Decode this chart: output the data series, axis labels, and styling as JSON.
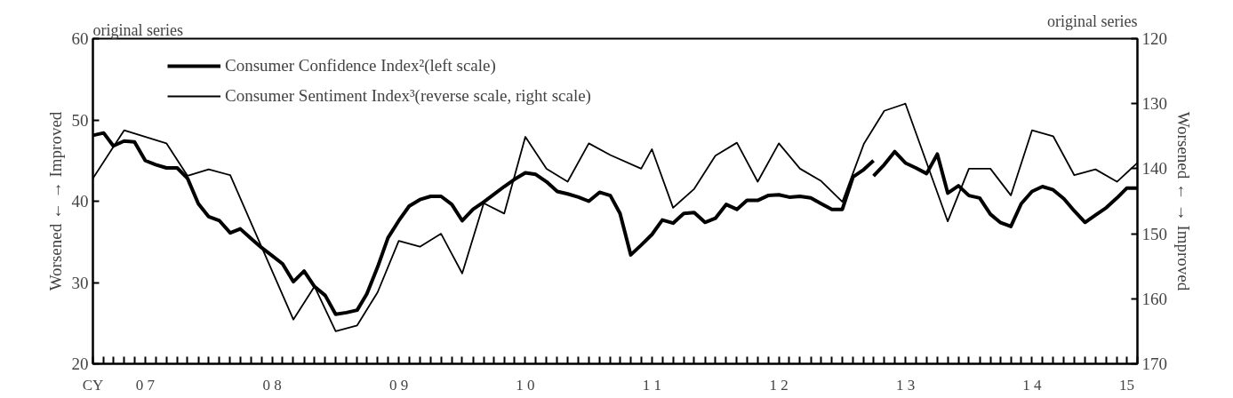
{
  "chart_data": {
    "type": "line",
    "ylabel": "Worsened ← → Improved",
    "y2label": "Worsened ← → Improved",
    "xlabel": "CY",
    "annotations": [
      "original series",
      "original series"
    ],
    "xlim": [
      "2007-01",
      "2015-04"
    ],
    "xticks": [
      {
        "value": "2007-06",
        "label": "0 7"
      },
      {
        "value": "2008-06",
        "label": "0 8"
      },
      {
        "value": "2009-06",
        "label": "0 9"
      },
      {
        "value": "2010-06",
        "label": "1 0"
      },
      {
        "value": "2011-06",
        "label": "1 1"
      },
      {
        "value": "2012-06",
        "label": "1 2"
      },
      {
        "value": "2013-06",
        "label": "1 3"
      },
      {
        "value": "2014-06",
        "label": "1 4"
      },
      {
        "value": "2015-03",
        "label": "15"
      }
    ],
    "ylim": [
      20,
      60
    ],
    "yticks": [
      20,
      30,
      40,
      50,
      60
    ],
    "y2lim": [
      170,
      120
    ],
    "y2ticks": [
      120,
      130,
      140,
      150,
      160,
      170
    ],
    "grid": false,
    "legend": "top left",
    "marker": "none",
    "line_style": "solid",
    "series": [
      {
        "name": "Consumer Confidence Index²(left scale)",
        "color": "#000000",
        "axis": "y",
        "x": [
          "2007-01",
          "2007-02",
          "2007-03",
          "2007-04",
          "2007-05",
          "2007-06",
          "2007-07",
          "2007-08",
          "2007-09",
          "2007-10",
          "2007-11",
          "2007-12",
          "2008-01",
          "2008-02",
          "2008-03",
          "2008-04",
          "2008-05",
          "2008-06",
          "2008-07",
          "2008-08",
          "2008-09",
          "2008-10",
          "2008-11",
          "2008-12",
          "2009-01",
          "2009-02",
          "2009-03",
          "2009-04",
          "2009-05",
          "2009-06",
          "2009-07",
          "2009-08",
          "2009-09",
          "2009-10",
          "2009-11",
          "2009-12",
          "2010-01",
          "2010-02",
          "2010-03",
          "2010-04",
          "2010-05",
          "2010-06",
          "2010-07",
          "2010-08",
          "2010-09",
          "2010-10",
          "2010-11",
          "2010-12",
          "2011-01",
          "2011-02",
          "2011-03",
          "2011-04",
          "2011-05",
          "2011-06",
          "2011-07",
          "2011-08",
          "2011-09",
          "2011-10",
          "2011-11",
          "2011-12",
          "2012-01",
          "2012-02",
          "2012-03",
          "2012-04",
          "2012-05",
          "2012-06",
          "2012-07",
          "2012-08",
          "2012-09",
          "2012-10",
          "2012-11",
          "2012-12",
          "2013-01",
          "2013-02",
          "2013-03"
        ],
        "values": [
          48.1,
          48.4,
          46.8,
          47.4,
          47.3,
          45.0,
          44.5,
          44.1,
          44.1,
          42.8,
          39.7,
          38.1,
          37.6,
          36.1,
          36.6,
          35.4,
          34.3,
          33.3,
          32.3,
          30.1,
          31.4,
          29.5,
          28.4,
          26.1,
          26.3,
          26.6,
          28.6,
          31.9,
          35.5,
          37.6,
          39.4,
          40.2,
          40.6,
          40.6,
          39.6,
          37.6,
          39.0,
          39.9,
          40.8,
          41.8,
          42.7,
          43.5,
          43.3,
          42.4,
          41.2,
          40.9,
          40.5,
          40.0,
          41.1,
          40.7,
          38.5,
          33.4,
          34.6,
          35.9,
          37.7,
          37.3,
          38.5,
          38.6,
          37.4,
          37.9,
          39.6,
          39.0,
          40.1,
          40.1,
          40.7,
          40.8,
          40.5,
          40.6,
          40.4,
          39.7,
          39.0,
          39.0,
          43.0,
          43.9,
          45.0
        ]
      },
      {
        "color": "#000000",
        "axis": "y",
        "x": [
          "2013-03",
          "2013-04",
          "2013-05",
          "2013-06",
          "2013-07",
          "2013-08",
          "2013-09",
          "2013-10",
          "2013-11",
          "2013-12",
          "2014-01",
          "2014-02",
          "2014-03",
          "2014-04",
          "2014-05",
          "2014-06",
          "2014-07",
          "2014-08",
          "2014-09",
          "2014-10",
          "2014-11",
          "2014-12",
          "2015-01",
          "2015-02",
          "2015-03",
          "2015-04"
        ],
        "values": [
          43.1,
          44.5,
          46.1,
          44.7,
          44.1,
          43.4,
          45.8,
          41.0,
          41.9,
          40.7,
          40.4,
          38.4,
          37.4,
          36.9,
          39.7,
          41.2,
          41.8,
          41.4,
          40.3,
          38.8,
          37.4,
          38.3,
          39.2,
          40.4,
          41.6,
          41.6
        ]
      },
      {
        "name": "Consumer Sentiment Index³(reverse scale, right scale)",
        "color": "#000000",
        "axis": "y2",
        "x": [
          "2007-01",
          "2007-04",
          "2007-08",
          "2007-10",
          "2007-12",
          "2008-02",
          "2008-08",
          "2008-10",
          "2008-12",
          "2009-02",
          "2009-04",
          "2009-06",
          "2009-08",
          "2009-10",
          "2009-12",
          "2010-02",
          "2010-04",
          "2010-06",
          "2010-08",
          "2010-10",
          "2010-12",
          "2011-02",
          "2011-05",
          "2011-06",
          "2011-08",
          "2011-10",
          "2011-12",
          "2012-02",
          "2012-04",
          "2012-06",
          "2012-08",
          "2012-10",
          "2012-12",
          "2013-02",
          "2013-04",
          "2013-06",
          "2013-10",
          "2013-12",
          "2014-02",
          "2014-04",
          "2014-06",
          "2014-08",
          "2014-10",
          "2014-12",
          "2015-02",
          "2015-04"
        ],
        "values": [
          141.5,
          134.1,
          136.1,
          141.1,
          140.1,
          141.0,
          163.2,
          158.1,
          165.0,
          164.1,
          159.0,
          151.1,
          152.0,
          150.0,
          156.1,
          145.3,
          146.9,
          135.1,
          140.0,
          142.0,
          136.1,
          137.9,
          140.0,
          137.0,
          146.0,
          143.1,
          138.0,
          136.0,
          142.0,
          136.1,
          140.0,
          141.9,
          145.1,
          136.2,
          131.1,
          130.0,
          148.1,
          140.0,
          140.0,
          144.1,
          134.1,
          135.0,
          141.0,
          140.1,
          142.0,
          139.1
        ]
      }
    ]
  }
}
